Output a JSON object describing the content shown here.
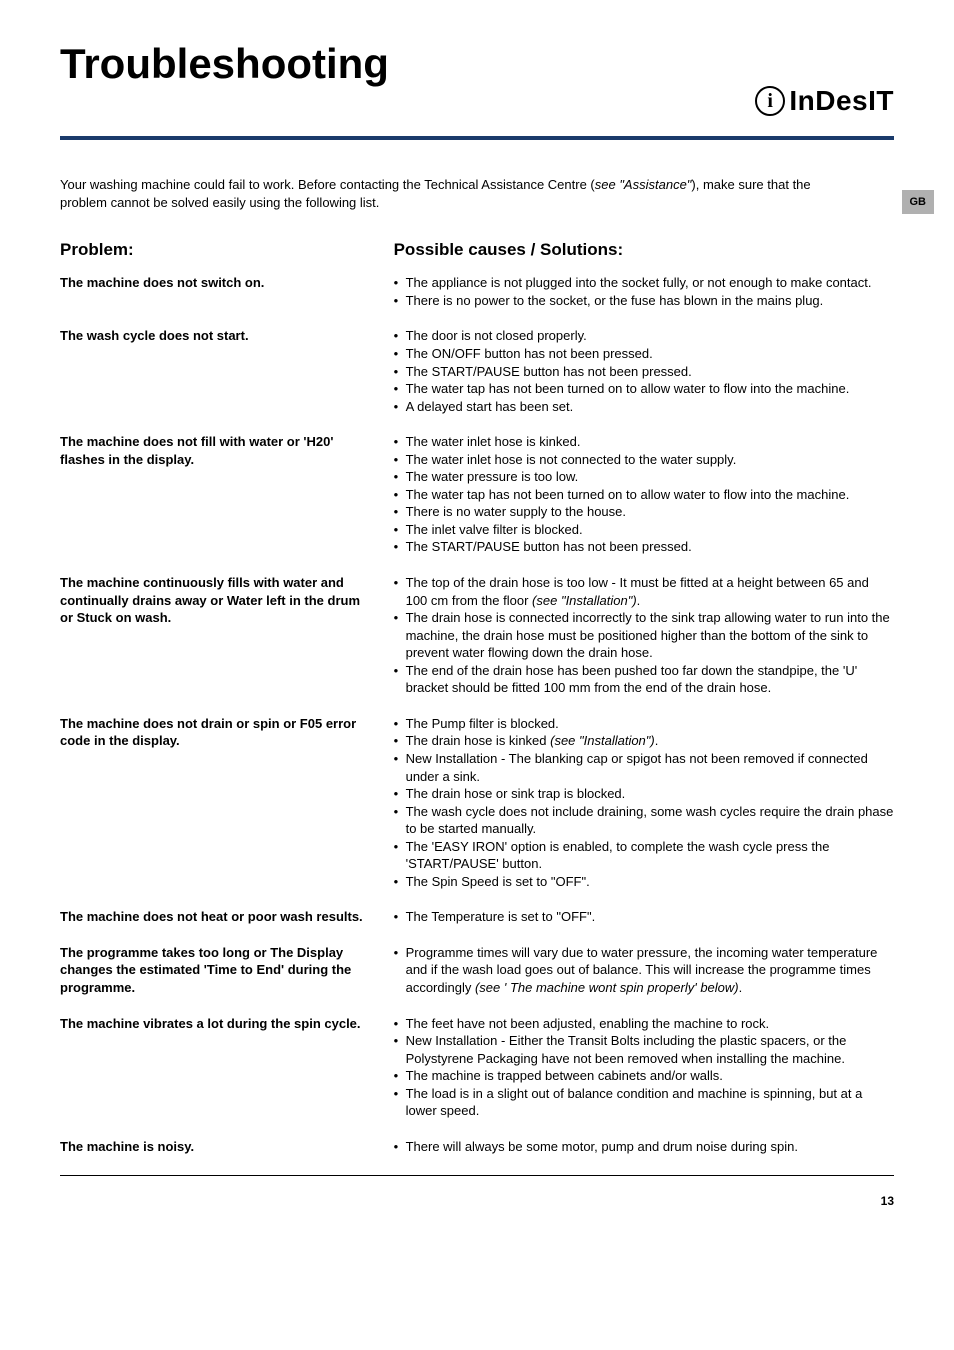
{
  "title": "Troubleshooting",
  "brand": "InDesIT",
  "lang_tab": "GB",
  "intro_a": "Your washing machine could fail to work. Before contacting the Technical Assistance Centre (",
  "intro_italic": "see \"Assistance\"",
  "intro_b": "), make sure that the problem cannot be solved easily using the following list.",
  "col_problem": "Problem:",
  "col_solution": "Possible causes / Solutions:",
  "rows": [
    {
      "problem": "The machine does not switch on.",
      "items": [
        "The appliance is not plugged into the socket fully, or not enough to make contact.",
        "There is no power to the socket, or the fuse has blown in the mains plug."
      ]
    },
    {
      "problem": "The wash cycle does not start.",
      "items": [
        "The door is not closed properly.",
        "The ON/OFF button has not been pressed.",
        "The START/PAUSE button has not been pressed.",
        "The water tap has not been turned on to allow water to flow into the machine.",
        "A delayed start has been set."
      ]
    },
    {
      "problem": "The machine does not fill with water or 'H20' flashes in the display.",
      "items": [
        "The water inlet hose is kinked.",
        "The water inlet hose is not connected to the water supply.",
        "The water pressure is too low.",
        "The water tap has not been turned on to allow water to flow into the machine.",
        "There is no water supply to the house.",
        "The inlet valve filter is blocked.",
        "The START/PAUSE button has not been pressed."
      ]
    },
    {
      "problem": "The machine continuously fills with water and continually drains away or Water left in the drum or Stuck on wash.",
      "items": [
        {
          "text": "The top of the drain hose is too low - It must be fitted at a height between 65 and 100 cm from the floor ",
          "italic": "(see \"Installation\")",
          "after": "."
        },
        {
          "text": "The drain hose is connected incorrectly to the sink trap allowing water to run into the machine, the drain hose must be positioned higher than the bottom of the sink to prevent water flowing down the drain hose."
        },
        {
          "text": "The end of the drain hose has been pushed too far down the standpipe, the 'U' bracket should be fitted 100 mm from the end of the drain hose."
        }
      ]
    },
    {
      "problem": "The machine does not drain or spin or F05 error code in the display.",
      "items": [
        {
          "text": "The Pump filter is blocked."
        },
        {
          "text": "The drain hose is kinked ",
          "italic": "(see \"Installation\")",
          "after": "."
        },
        {
          "text": "New Installation -  The blanking cap or spigot has not been removed if connected under a sink."
        },
        {
          "text": "The drain hose or sink trap is blocked."
        },
        {
          "text": "The wash cycle does not include draining, some wash cycles require the drain phase to be started manually."
        },
        {
          "text": "The 'EASY IRON' option is enabled, to complete the wash cycle press the 'START/PAUSE' button."
        },
        {
          "text": "The Spin Speed is set to \"OFF\"."
        }
      ]
    },
    {
      "problem": "The machine does not heat or poor wash results.",
      "items": [
        "The Temperature is set to \"OFF\"."
      ]
    },
    {
      "problem": "The programme takes too long or  The  Display changes the estimated 'Time to End' during the programme.",
      "items": [
        {
          "text": "Programme times will vary due to water pressure, the incoming water temperature and if the wash load goes out of balance. This will increase the programme times accordingly ",
          "italic": "(see ' The machine wont spin properly' below)",
          "after": "."
        }
      ]
    },
    {
      "problem": "The machine vibrates a lot during the spin cycle.",
      "items": [
        "The feet have not been adjusted, enabling the machine to rock.",
        "New Installation -  Either the Transit Bolts including the plastic spacers, or the Polystyrene Packaging have not been removed when installing the machine.",
        "The machine is trapped between cabinets and/or walls.",
        "The load is in a slight out of balance condition and machine is spinning, but at a lower speed."
      ]
    },
    {
      "problem": "The machine is noisy.",
      "items": [
        "There will always be some motor, pump and drum noise during spin."
      ]
    }
  ],
  "page_number": "13",
  "colors": {
    "rule": "#1a3a6b",
    "tab_bg": "#b0b0b0"
  }
}
